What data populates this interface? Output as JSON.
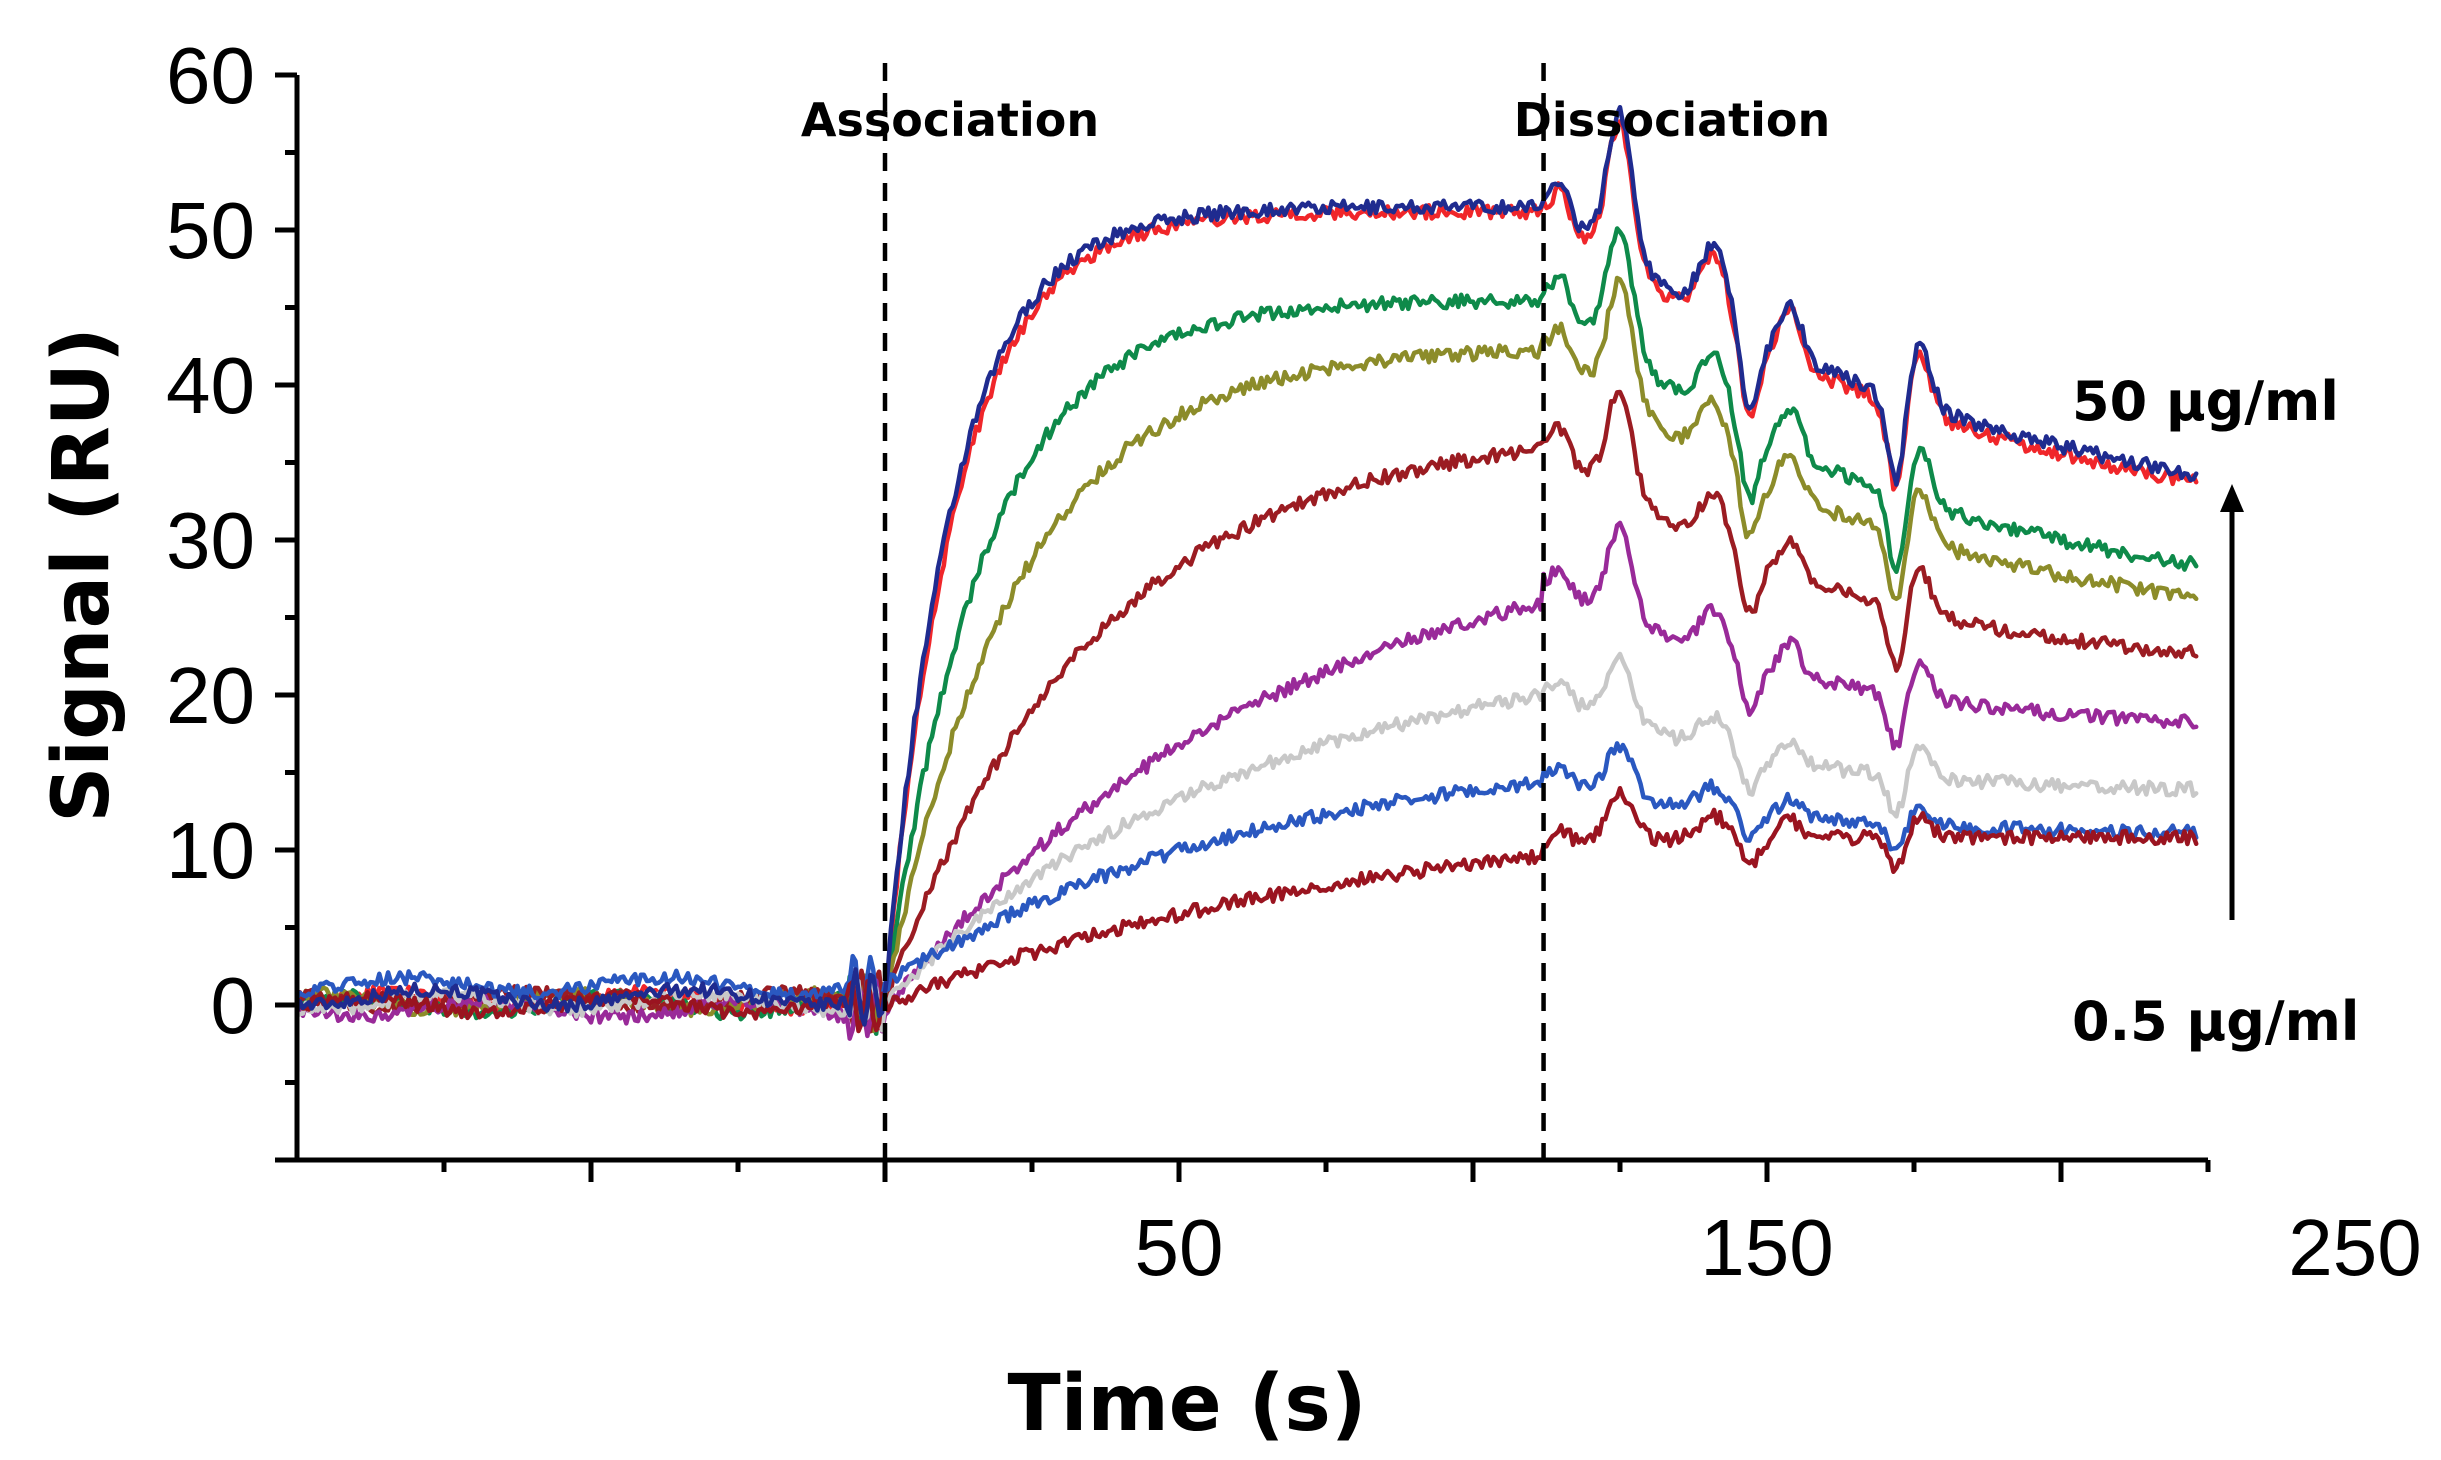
{
  "chart_data": {
    "type": "line",
    "title": "",
    "xlabel": "Time (s)",
    "ylabel": "Signal (RU)",
    "xlim": [
      -100,
      225
    ],
    "ylim": [
      -10,
      60
    ],
    "xticks": [
      50,
      150,
      250
    ],
    "xtick_labels": [
      "50",
      "150",
      "250"
    ],
    "yticks": [
      0,
      10,
      20,
      30,
      40,
      50,
      60
    ],
    "ytick_labels": [
      "0",
      "10",
      "20",
      "30",
      "40",
      "50",
      "60"
    ],
    "grid": false,
    "phases": [
      {
        "name": "Association",
        "start": 0
      },
      {
        "name": "Dissociation",
        "start": 112
      }
    ],
    "concentration_arrow": {
      "top_label": "50 μg/ml",
      "bottom_label": "0.5 μg/ml"
    },
    "series": [
      {
        "name": "50 μg/ml (navy)",
        "color": "#1f2b8f",
        "baseline": 0.5,
        "plateau": 51.5,
        "k": 0.085,
        "start": 52,
        "end": 29.5,
        "k_off": 0.014
      },
      {
        "name": "red",
        "color": "#f0262a",
        "baseline": 0.3,
        "plateau": 51.2,
        "k": 0.082,
        "start": 51.5,
        "end": 29.0,
        "k_off": 0.014
      },
      {
        "name": "green",
        "color": "#0e8a4a",
        "baseline": 0.0,
        "plateau": 45.5,
        "k": 0.06,
        "start": 46,
        "end": 24.8,
        "k_off": 0.016
      },
      {
        "name": "olive",
        "color": "#8c8c2a",
        "baseline": 0.2,
        "plateau": 42.5,
        "k": 0.045,
        "start": 42.8,
        "end": 23.4,
        "k_off": 0.017
      },
      {
        "name": "dark red",
        "color": "#9b1c22",
        "baseline": 0.3,
        "plateau": 37.5,
        "k": 0.028,
        "start": 36.5,
        "end": 21.0,
        "k_off": 0.02
      },
      {
        "name": "purple",
        "color": "#992a99",
        "baseline": -0.3,
        "plateau": 32.0,
        "k": 0.015,
        "start": 27.5,
        "end": 17.3,
        "k_off": 0.022
      },
      {
        "name": "gray",
        "color": "#c8c8c8",
        "baseline": 0.2,
        "plateau": 24.0,
        "k": 0.016,
        "start": 20.5,
        "end": 13.7,
        "k_off": 0.03
      },
      {
        "name": "blue",
        "color": "#2a58c0",
        "baseline": 1.3,
        "plateau": 17.0,
        "k": 0.016,
        "start": 14.8,
        "end": 11.0,
        "k_off": 0.03
      },
      {
        "name": "0.5 μg/ml (maroon)",
        "color": "#9a1420",
        "baseline": 0.0,
        "plateau": 13.0,
        "k": 0.012,
        "start": 10.5,
        "end": 10.8,
        "k_off": 0.05
      }
    ]
  }
}
